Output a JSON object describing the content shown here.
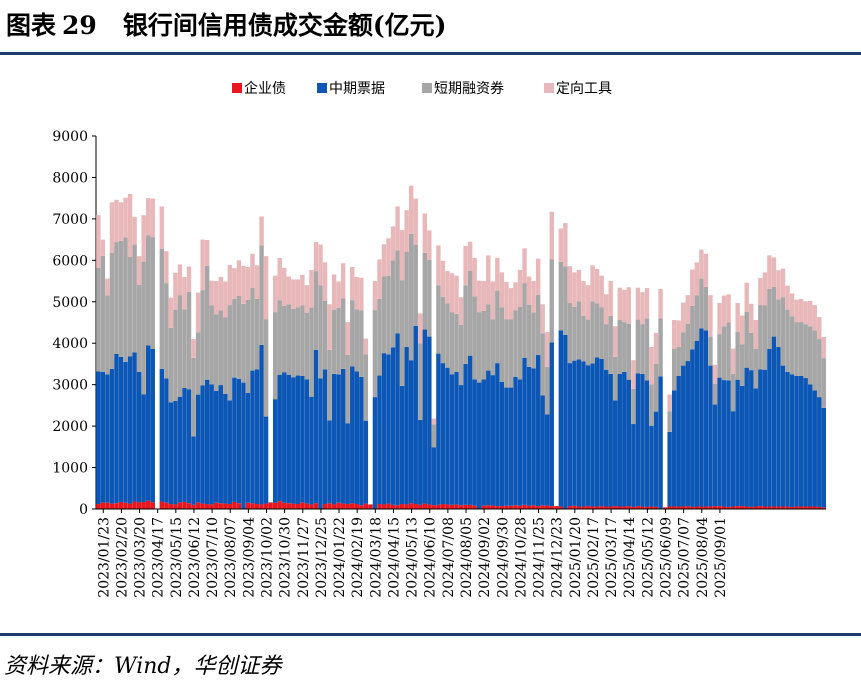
{
  "title": {
    "prefix": "图表",
    "number": "29",
    "text": "银行间信用债成交金额(亿元)"
  },
  "source": "资料来源：Wind，华创证券",
  "chart_data": {
    "type": "stacked-bar",
    "title": "",
    "xlabel": "",
    "ylabel": "",
    "ylim": [
      0,
      9000
    ],
    "yticks": [
      0,
      1000,
      2000,
      3000,
      4000,
      5000,
      6000,
      7000,
      8000,
      9000
    ],
    "legend_position": "top",
    "grid": false,
    "series": [
      {
        "name": "企业债",
        "color": "#e8161e",
        "values": [
          120,
          160,
          150,
          130,
          140,
          170,
          150,
          130,
          180,
          160,
          170,
          200,
          160,
          0,
          180,
          150,
          120,
          110,
          160,
          170,
          140,
          100,
          160,
          130,
          120,
          110,
          150,
          140,
          130,
          120,
          170,
          140,
          0,
          150,
          140,
          120,
          110,
          130,
          160,
          150,
          190,
          150,
          140,
          130,
          120,
          160,
          130,
          110,
          140,
          0,
          120,
          140,
          110,
          150,
          130,
          120,
          140,
          120,
          90,
          130,
          110,
          0,
          120,
          110,
          130,
          100,
          90,
          120,
          110,
          140,
          120,
          100,
          130,
          110,
          90,
          100,
          120,
          110,
          100,
          110,
          90,
          100,
          100,
          80,
          0,
          80,
          90,
          80,
          70,
          70,
          80,
          80,
          90,
          80,
          100,
          80,
          90,
          70,
          90,
          80,
          70,
          70,
          60,
          0,
          70,
          80,
          60,
          60,
          70,
          60,
          60,
          70,
          60,
          60,
          70,
          60,
          60,
          70,
          50,
          70,
          60,
          50,
          60,
          50,
          0,
          40,
          60,
          60,
          60,
          60,
          70,
          50,
          60,
          60,
          60,
          60,
          70,
          70,
          60,
          50,
          60,
          70,
          70,
          60,
          50,
          60,
          70,
          60,
          60,
          60,
          60,
          60,
          60,
          50,
          60,
          60,
          60,
          60,
          60,
          50,
          40
        ]
      },
      {
        "name": "中期票据",
        "color": "#0c56b5",
        "values": [
          3200,
          3150,
          3100,
          3250,
          3600,
          3500,
          3400,
          3550,
          3600,
          3150,
          2600,
          3750,
          3700,
          0,
          3200,
          3000,
          2450,
          2500,
          2550,
          2750,
          2750,
          1650,
          2600,
          2850,
          3000,
          2900,
          2700,
          2850,
          2650,
          2500,
          3000,
          3000,
          3050,
          2650,
          3200,
          3250,
          3850,
          2100,
          0,
          2500,
          3050,
          3150,
          3100,
          3050,
          3100,
          3050,
          3000,
          2600,
          3700,
          3150,
          3250,
          2000,
          3150,
          3100,
          3250,
          1950,
          3300,
          3200,
          3100,
          2000,
          0,
          2700,
          3100,
          3650,
          3600,
          3800,
          4150,
          2850,
          3800,
          3450,
          4300,
          2050,
          4200,
          4050,
          1400,
          3650,
          3400,
          3300,
          3150,
          3200,
          2900,
          3400,
          3600,
          3050,
          3050,
          3050,
          3250,
          3150,
          3450,
          3000,
          2850,
          2850,
          3100,
          3050,
          3550,
          3350,
          3300,
          3650,
          2650,
          2200,
          3950,
          0,
          4250,
          4200,
          3450,
          3500,
          3550,
          3500,
          3400,
          3450,
          3600,
          3550,
          3300,
          3200,
          2550,
          3200,
          3250,
          3050,
          2000,
          3200,
          3200,
          3050,
          1950,
          2300,
          3200,
          0,
          1800,
          2800,
          3150,
          3400,
          3500,
          3800,
          4000,
          4300,
          4250,
          3400,
          2450,
          3100,
          3050,
          3050,
          2300,
          3050,
          2900,
          3350,
          3300,
          2850,
          3300,
          3300,
          3800,
          4100,
          3850,
          3400,
          3250,
          3200,
          3150,
          3150,
          3100,
          2950,
          2800,
          2650,
          2400
        ]
      },
      {
        "name": "短期融资券",
        "color": "#a6a6a6",
        "values": [
          2500,
          2800,
          1900,
          2800,
          2700,
          2800,
          3000,
          2400,
          2600,
          2100,
          3200,
          2650,
          2700,
          0,
          2900,
          2300,
          1800,
          2200,
          2450,
          1900,
          2350,
          1900,
          1500,
          2300,
          2750,
          1900,
          1850,
          1800,
          1850,
          2300,
          1900,
          2000,
          1900,
          2250,
          2000,
          1700,
          2400,
          2350,
          0,
          2100,
          1800,
          1600,
          1700,
          1650,
          1650,
          1700,
          1600,
          2150,
          1900,
          2250,
          1650,
          1700,
          1550,
          1600,
          1700,
          1650,
          1600,
          1500,
          1600,
          1600,
          0,
          2100,
          1850,
          1850,
          1900,
          2100,
          2000,
          2550,
          2300,
          3050,
          1950,
          1850,
          1850,
          1850,
          550,
          1650,
          1600,
          1550,
          1500,
          1400,
          1450,
          1900,
          2050,
          2000,
          1700,
          1650,
          1600,
          1350,
          1750,
          1800,
          1650,
          1650,
          1600,
          1750,
          1800,
          1500,
          1350,
          1450,
          1500,
          1150,
          2000,
          0,
          1650,
          1650,
          1450,
          1300,
          1400,
          1100,
          1100,
          1500,
          1300,
          1250,
          1100,
          1400,
          1050,
          1300,
          1200,
          1350,
          850,
          1300,
          1200,
          1500,
          1000,
          1150,
          1400,
          0,
          500,
          1000,
          700,
          800,
          900,
          1050,
          1100,
          1200,
          1050,
          700,
          500,
          1050,
          1300,
          1400,
          900,
          1150,
          1000,
          1350,
          900,
          950,
          1550,
          1550,
          1450,
          1200,
          1150,
          1650,
          1500,
          1400,
          1300,
          1300,
          1300,
          1400,
          1450,
          1400,
          1200
        ]
      },
      {
        "name": "定向工具",
        "color": "#e8b7b9",
        "values": [
          1270,
          390,
          410,
          1220,
          1020,
          930,
          960,
          1520,
          670,
          690,
          1120,
          900,
          930,
          0,
          1020,
          770,
          730,
          890,
          740,
          780,
          610,
          450,
          960,
          1220,
          620,
          600,
          800,
          810,
          860,
          970,
          740,
          860,
          920,
          790,
          820,
          810,
          700,
          1520,
          0,
          880,
          1020,
          920,
          670,
          710,
          670,
          740,
          670,
          910,
          700,
          980,
          930,
          1100,
          850,
          640,
          850,
          790,
          800,
          780,
          790,
          380,
          0,
          700,
          950,
          780,
          900,
          820,
          1060,
          1210,
          1000,
          1160,
          1120,
          720,
          950,
          710,
          140,
          960,
          870,
          780,
          940,
          920,
          670,
          950,
          700,
          930,
          760,
          720,
          1180,
          910,
          790,
          840,
          900,
          750,
          680,
          890,
          840,
          680,
          760,
          870,
          700,
          840,
          1150,
          0,
          810,
          1050,
          890,
          830,
          760,
          840,
          830,
          870,
          830,
          760,
          720,
          840,
          740,
          780,
          780,
          880,
          690,
          770,
          770,
          730,
          900,
          750,
          710,
          0,
          400,
          700,
          640,
          720,
          690,
          880,
          790,
          700,
          800,
          1000,
          460,
          750,
          740,
          680,
          610,
          700,
          700,
          700,
          700,
          700,
          650,
          800,
          810,
          710,
          700,
          690,
          580,
          550,
          540,
          560,
          550,
          610,
          610,
          530,
          510
        ]
      }
    ],
    "x_tick_labels": [
      "2023/01/23",
      "2023/02/20",
      "2023/03/20",
      "2023/04/17",
      "2023/05/15",
      "2023/06/12",
      "2023/07/10",
      "2023/08/07",
      "2023/09/04",
      "2023/10/02",
      "2023/10/30",
      "2023/11/27",
      "2023/12/25",
      "2024/01/22",
      "2024/02/19",
      "2024/03/18",
      "2024/04/15",
      "2024/05/13",
      "2024/06/10",
      "2024/07/08",
      "2024/08/05",
      "2024/09/02",
      "2024/09/30",
      "2024/10/28",
      "2024/11/25",
      "2024/12/23",
      "2025/01/20",
      "2025/02/17",
      "2025/03/17",
      "2025/04/14",
      "2025/05/12",
      "2025/06/09",
      "2025/07/07",
      "2025/08/04",
      "2025/09/01"
    ]
  }
}
